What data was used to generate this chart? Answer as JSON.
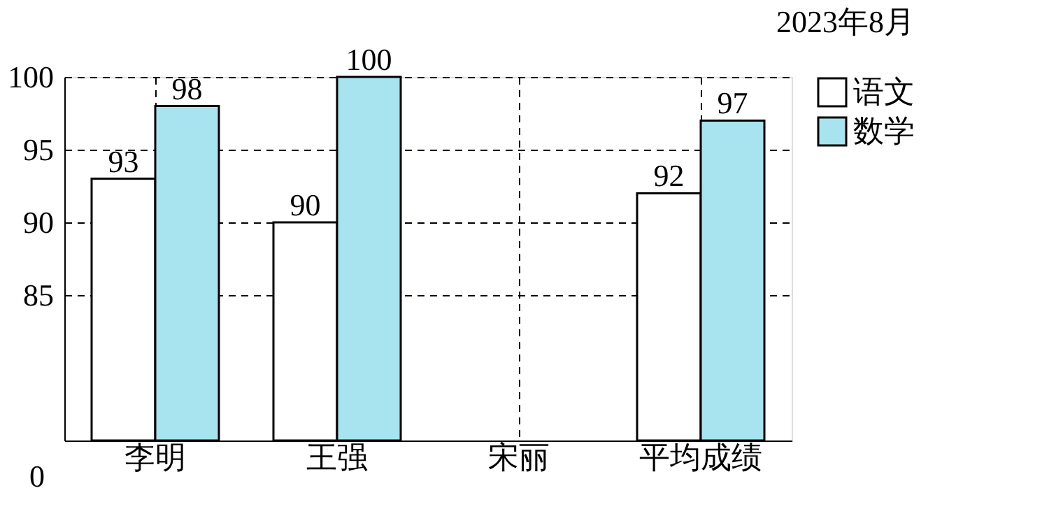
{
  "chart_data": {
    "type": "bar",
    "title": "2023年8月",
    "categories": [
      "李明",
      "王强",
      "宋丽",
      "平均成绩"
    ],
    "series": [
      {
        "name": "语文",
        "color": "#ffffff",
        "values": [
          93,
          90,
          null,
          92
        ]
      },
      {
        "name": "数学",
        "color": "#a8e4ef",
        "values": [
          98,
          100,
          null,
          97
        ]
      }
    ],
    "ylim": [
      75,
      100
    ],
    "yticks": [
      85,
      90,
      95,
      100
    ],
    "annotations": [
      "0"
    ],
    "data_labels": true,
    "grid": true,
    "legend": "right"
  }
}
